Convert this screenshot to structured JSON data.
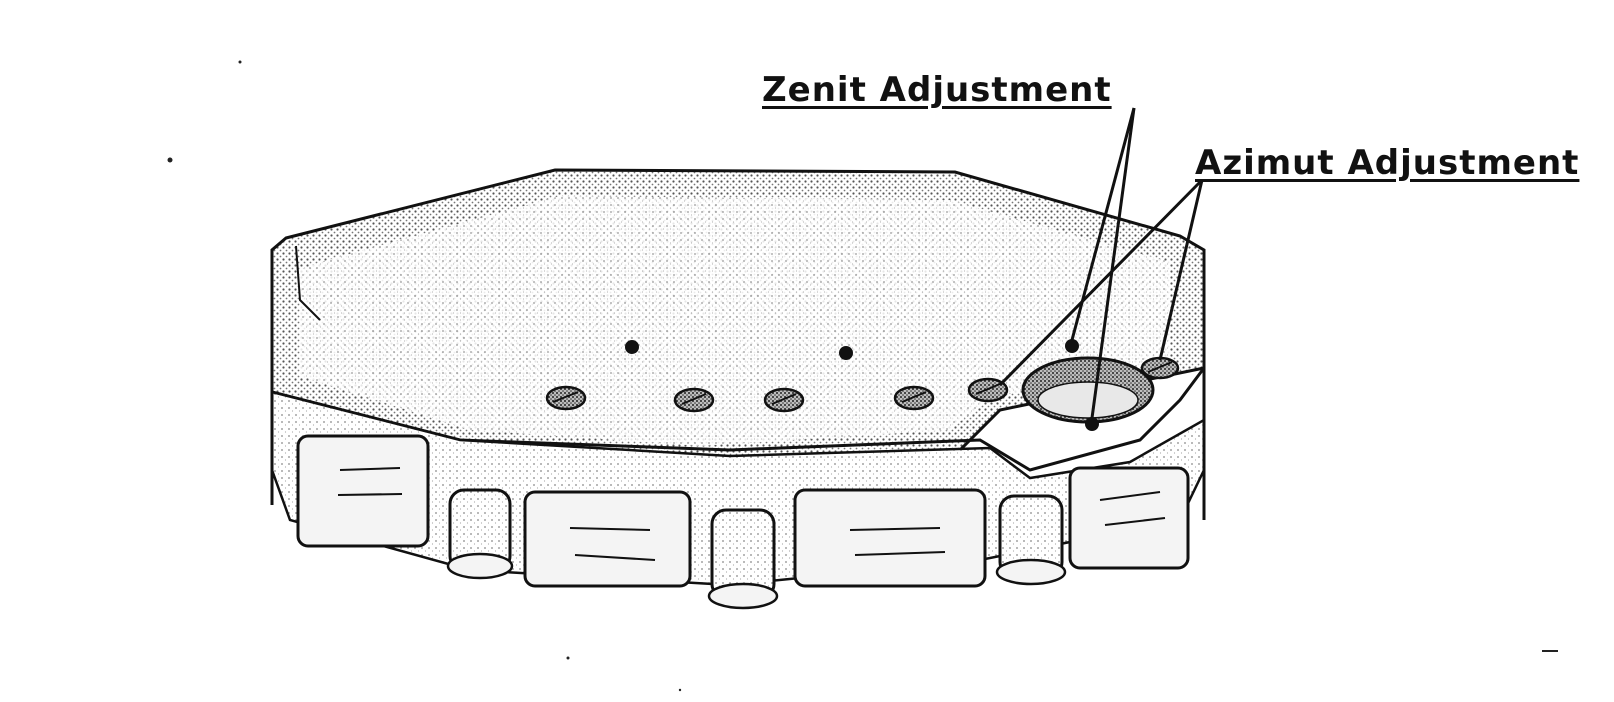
{
  "labels": {
    "zenit": "Zenit Adjustment",
    "azimut": "Azimut Adjustment"
  },
  "colors": {
    "ink": "#111111",
    "paper": "#ffffff",
    "stipple_light": "#cfcfcf",
    "stipple_dark": "#8a8a8a"
  }
}
